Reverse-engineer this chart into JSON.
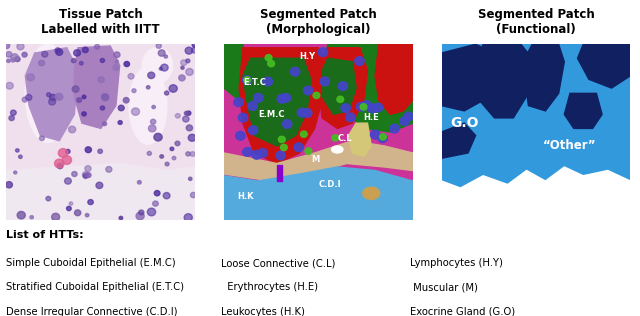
{
  "title1": "Tissue Patch\nLabelled with IITT",
  "title2": "Segmented Patch\n(Morphological)",
  "title3": "Segmented Patch\n(Functional)",
  "bg_color": "#ffffff",
  "panel1_bg": "#e8d0e0",
  "panel2_bg": "#cc44aa",
  "panel3_bg": "#3399dd",
  "legend_lines": [
    [
      "List of HTTs:",
      "",
      ""
    ],
    [
      "Simple Cuboidal Epithelial (E.M.C)",
      "Loose Connective (C.L)",
      "Lymphocytes (H.Y)"
    ],
    [
      "Stratified Cuboidal Epithelial (E.T.C)",
      "  Erythrocytes (H.E)",
      " Muscular (M)"
    ],
    [
      "Dense Irregular Connective (C.D.I)",
      "Leukocytes (H.K)",
      "Exocrine Gland (G.O)"
    ]
  ],
  "colors": {
    "red": "#cc0000",
    "dark_green": "#1a6b1a",
    "magenta_bg": "#cc44aa",
    "tan": "#d2b48c",
    "light_blue": "#3399dd",
    "dark_navy": "#102060",
    "white": "#ffffff",
    "purple_dot": "#5555cc",
    "green_dot": "#44bb22",
    "violet": "#8800bb",
    "tan2": "#c8a050"
  }
}
